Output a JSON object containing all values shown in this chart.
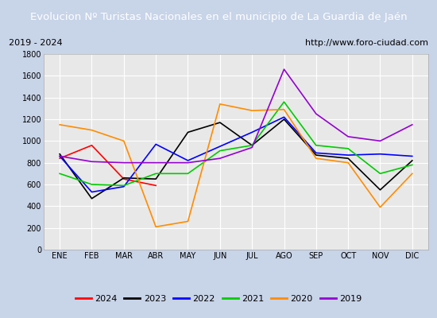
{
  "title": "Evolucion Nº Turistas Nacionales en el municipio de La Guardia de Jaén",
  "subtitle_left": "2019 - 2024",
  "subtitle_right": "http://www.foro-ciudad.com",
  "months": [
    "ENE",
    "FEB",
    "MAR",
    "ABR",
    "MAY",
    "JUN",
    "JUL",
    "AGO",
    "SEP",
    "OCT",
    "NOV",
    "DIC"
  ],
  "series": {
    "2024": {
      "color": "#ff0000",
      "data": [
        840,
        960,
        650,
        590,
        null,
        null,
        null,
        null,
        null,
        null,
        null,
        null
      ]
    },
    "2023": {
      "color": "#000000",
      "data": [
        880,
        470,
        660,
        650,
        1080,
        1170,
        960,
        1200,
        870,
        840,
        550,
        820
      ]
    },
    "2022": {
      "color": "#0000ff",
      "data": [
        860,
        530,
        580,
        970,
        820,
        950,
        1080,
        1220,
        890,
        870,
        880,
        860
      ]
    },
    "2021": {
      "color": "#00cc00",
      "data": [
        700,
        600,
        590,
        700,
        700,
        910,
        960,
        1360,
        960,
        930,
        700,
        780
      ]
    },
    "2020": {
      "color": "#ff8c00",
      "data": [
        1150,
        1100,
        1000,
        210,
        260,
        1340,
        1280,
        1290,
        840,
        800,
        390,
        700
      ]
    },
    "2019": {
      "color": "#9400d3",
      "data": [
        860,
        810,
        800,
        800,
        800,
        840,
        940,
        1660,
        1250,
        1040,
        1000,
        1150
      ]
    }
  },
  "ylim": [
    0,
    1800
  ],
  "yticks": [
    0,
    200,
    400,
    600,
    800,
    1000,
    1200,
    1400,
    1600,
    1800
  ],
  "title_bg": "#4472c4",
  "title_color": "#ffffff",
  "plot_bg": "#e8e8e8",
  "grid_color": "#ffffff",
  "outer_bg": "#c8d4e8",
  "legend_order": [
    "2024",
    "2023",
    "2022",
    "2021",
    "2020",
    "2019"
  ]
}
